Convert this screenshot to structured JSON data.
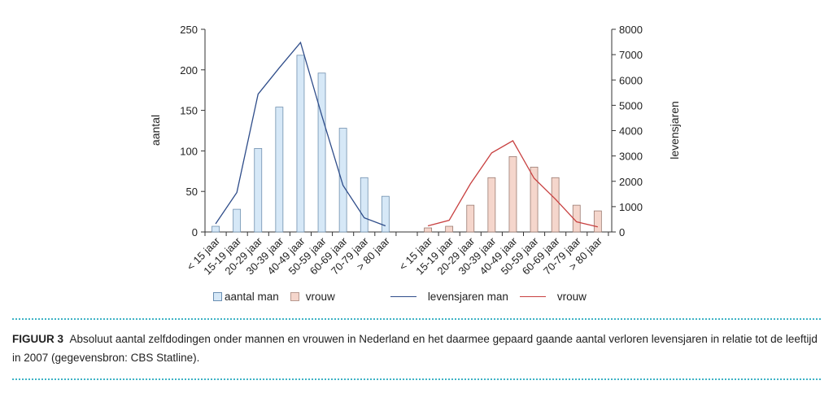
{
  "chart_data": {
    "type": "bar",
    "categories": [
      "< 15 jaar",
      "15-19 jaar",
      "20-29 jaar",
      "30-39 jaar",
      "40-49 jaar",
      "50-59 jaar",
      "60-69 jaar",
      "70-79 jaar",
      "> 80 jaar"
    ],
    "ylabel_left": "aantal",
    "ylabel_right": "levensjaren",
    "ylim_left": [
      0,
      250
    ],
    "ylim_right": [
      0,
      8000
    ],
    "yticks_left": [
      0,
      50,
      100,
      150,
      200,
      250
    ],
    "yticks_right": [
      0,
      1000,
      2000,
      3000,
      4000,
      5000,
      6000,
      7000,
      8000
    ],
    "series": [
      {
        "name": "aantal man",
        "type": "bar",
        "axis": "left",
        "color": "#d6e8f7",
        "stroke": "#6f8fae",
        "values": [
          7,
          28,
          103,
          154,
          218,
          196,
          128,
          67,
          44
        ]
      },
      {
        "name": "aantal vrouw",
        "type": "bar",
        "axis": "left",
        "color": "#f5d6cc",
        "stroke": "#9a7a70",
        "values": [
          5,
          7,
          33,
          67,
          93,
          80,
          67,
          33,
          26
        ]
      },
      {
        "name": "levensjaren man",
        "type": "line",
        "axis": "right",
        "color": "#2f4d8a",
        "values": [
          320,
          1560,
          5440,
          6480,
          7480,
          4600,
          1840,
          560,
          240
        ]
      },
      {
        "name": "levensjaren vrouw",
        "type": "line",
        "axis": "right",
        "color": "#c84040",
        "values": [
          240,
          460,
          1900,
          3120,
          3600,
          2120,
          1300,
          400,
          200
        ]
      }
    ],
    "legend": [
      "aantal man",
      "vrouw",
      "levensjaren man",
      "vrouw"
    ],
    "legend_position": "bottom",
    "grid": false
  },
  "caption": {
    "label": "FIGUUR 3",
    "text": "Absoluut aantal zelfdodingen onder mannen en vrouwen in Nederland en het daarmee gepaard gaande aantal verloren levensjaren in relatie tot de leeftijd in 2007 (gegevensbron: CBS Statline)."
  }
}
